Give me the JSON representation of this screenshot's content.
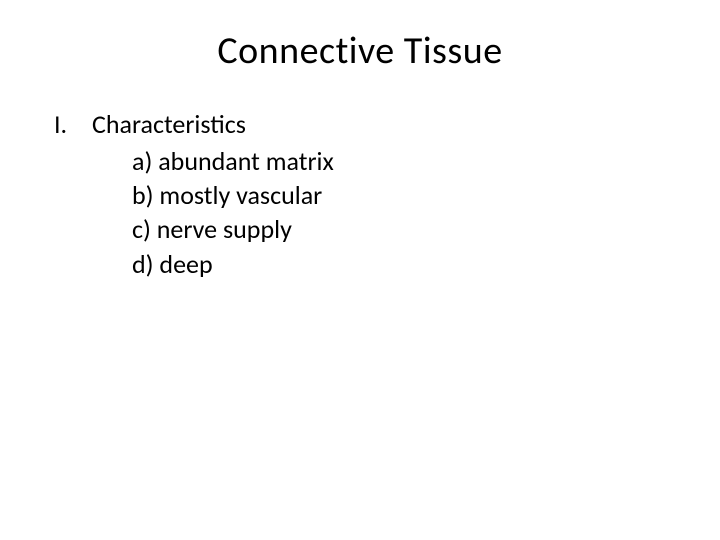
{
  "slide": {
    "title": "Connective Tissue",
    "outline": {
      "marker": "I.",
      "heading": "Characteristics",
      "items": {
        "a": "a) abundant matrix",
        "b": "b) mostly vascular",
        "c": "c) nerve supply",
        "d": "d) deep"
      }
    },
    "style": {
      "background_color": "#ffffff",
      "text_color": "#000000",
      "title_fontsize": 38,
      "body_fontsize": 26,
      "font_family": "Calibri"
    }
  }
}
